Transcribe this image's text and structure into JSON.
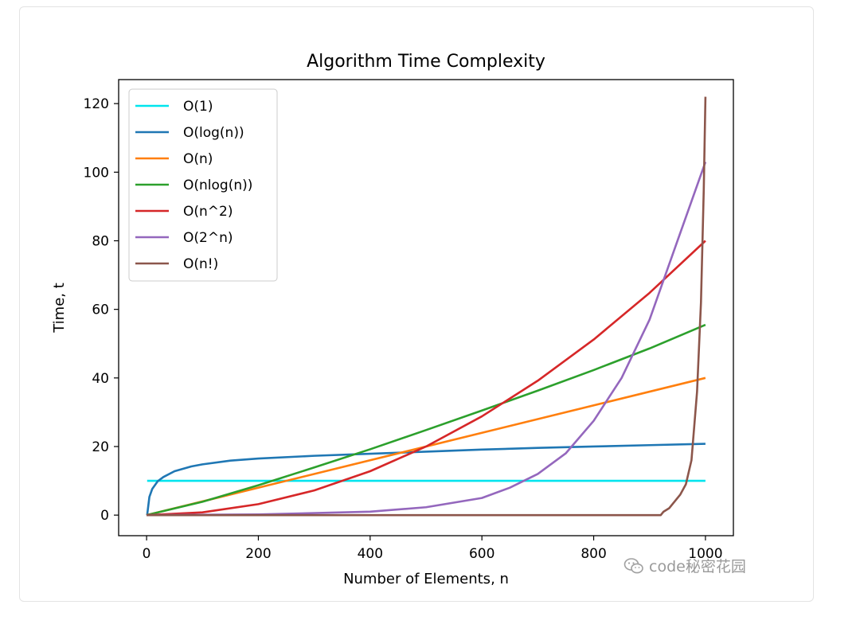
{
  "chart_data": {
    "type": "line",
    "title": "Algorithm Time Complexity",
    "xlabel": "Number of Elements, n",
    "ylabel": "Time, t",
    "xlim": [
      -50,
      1050
    ],
    "ylim": [
      -6,
      127
    ],
    "xticks": [
      0,
      200,
      400,
      600,
      800,
      1000
    ],
    "yticks": [
      0,
      20,
      40,
      60,
      80,
      100,
      120
    ],
    "grid": false,
    "legend_position": "upper-left",
    "series": [
      {
        "name": "O(1)",
        "color": "#00e5ee",
        "x": [
          1,
          1000
        ],
        "y": [
          10,
          10
        ]
      },
      {
        "name": "O(log(n))",
        "color": "#1f77b4",
        "x": [
          1,
          5,
          10,
          20,
          30,
          50,
          80,
          100,
          150,
          200,
          300,
          400,
          500,
          600,
          700,
          800,
          900,
          1000
        ],
        "y": [
          0,
          5.3,
          7.6,
          9.9,
          11.1,
          12.8,
          14.2,
          14.8,
          15.9,
          16.5,
          17.3,
          17.9,
          18.5,
          19.1,
          19.6,
          20.0,
          20.4,
          20.8
        ]
      },
      {
        "name": "O(n)",
        "color": "#ff7f0e",
        "x": [
          0,
          1000
        ],
        "y": [
          0,
          40
        ]
      },
      {
        "name": "O(nlog(n))",
        "color": "#2ca02c",
        "x": [
          0,
          100,
          200,
          300,
          400,
          500,
          600,
          700,
          800,
          900,
          1000
        ],
        "y": [
          0,
          3.9,
          8.7,
          13.9,
          19.2,
          24.8,
          30.5,
          36.3,
          42.3,
          48.6,
          55.5
        ]
      },
      {
        "name": "O(n^2)",
        "color": "#d62728",
        "x": [
          0,
          100,
          200,
          300,
          400,
          500,
          600,
          700,
          800,
          900,
          1000
        ],
        "y": [
          0,
          0.8,
          3.2,
          7.2,
          12.8,
          20,
          28.8,
          39.2,
          51.2,
          64.8,
          80
        ]
      },
      {
        "name": "O(2^n)",
        "color": "#9467bd",
        "x": [
          0,
          200,
          400,
          500,
          600,
          650,
          700,
          750,
          800,
          850,
          900,
          950,
          1000
        ],
        "y": [
          0,
          0.2,
          1.0,
          2.3,
          5.0,
          8.0,
          12.0,
          18.0,
          27.5,
          40.0,
          57.0,
          80.0,
          103.0
        ]
      },
      {
        "name": "O(n!)",
        "color": "#8c564b",
        "x": [
          0,
          920,
          925,
          935,
          945,
          955,
          965,
          975,
          985,
          992,
          997,
          1000
        ],
        "y": [
          0,
          0,
          1,
          2,
          4,
          6,
          9,
          16,
          36,
          62,
          95,
          122
        ]
      }
    ]
  },
  "watermark": {
    "text": "code秘密花园",
    "icon": "wechat-icon"
  }
}
